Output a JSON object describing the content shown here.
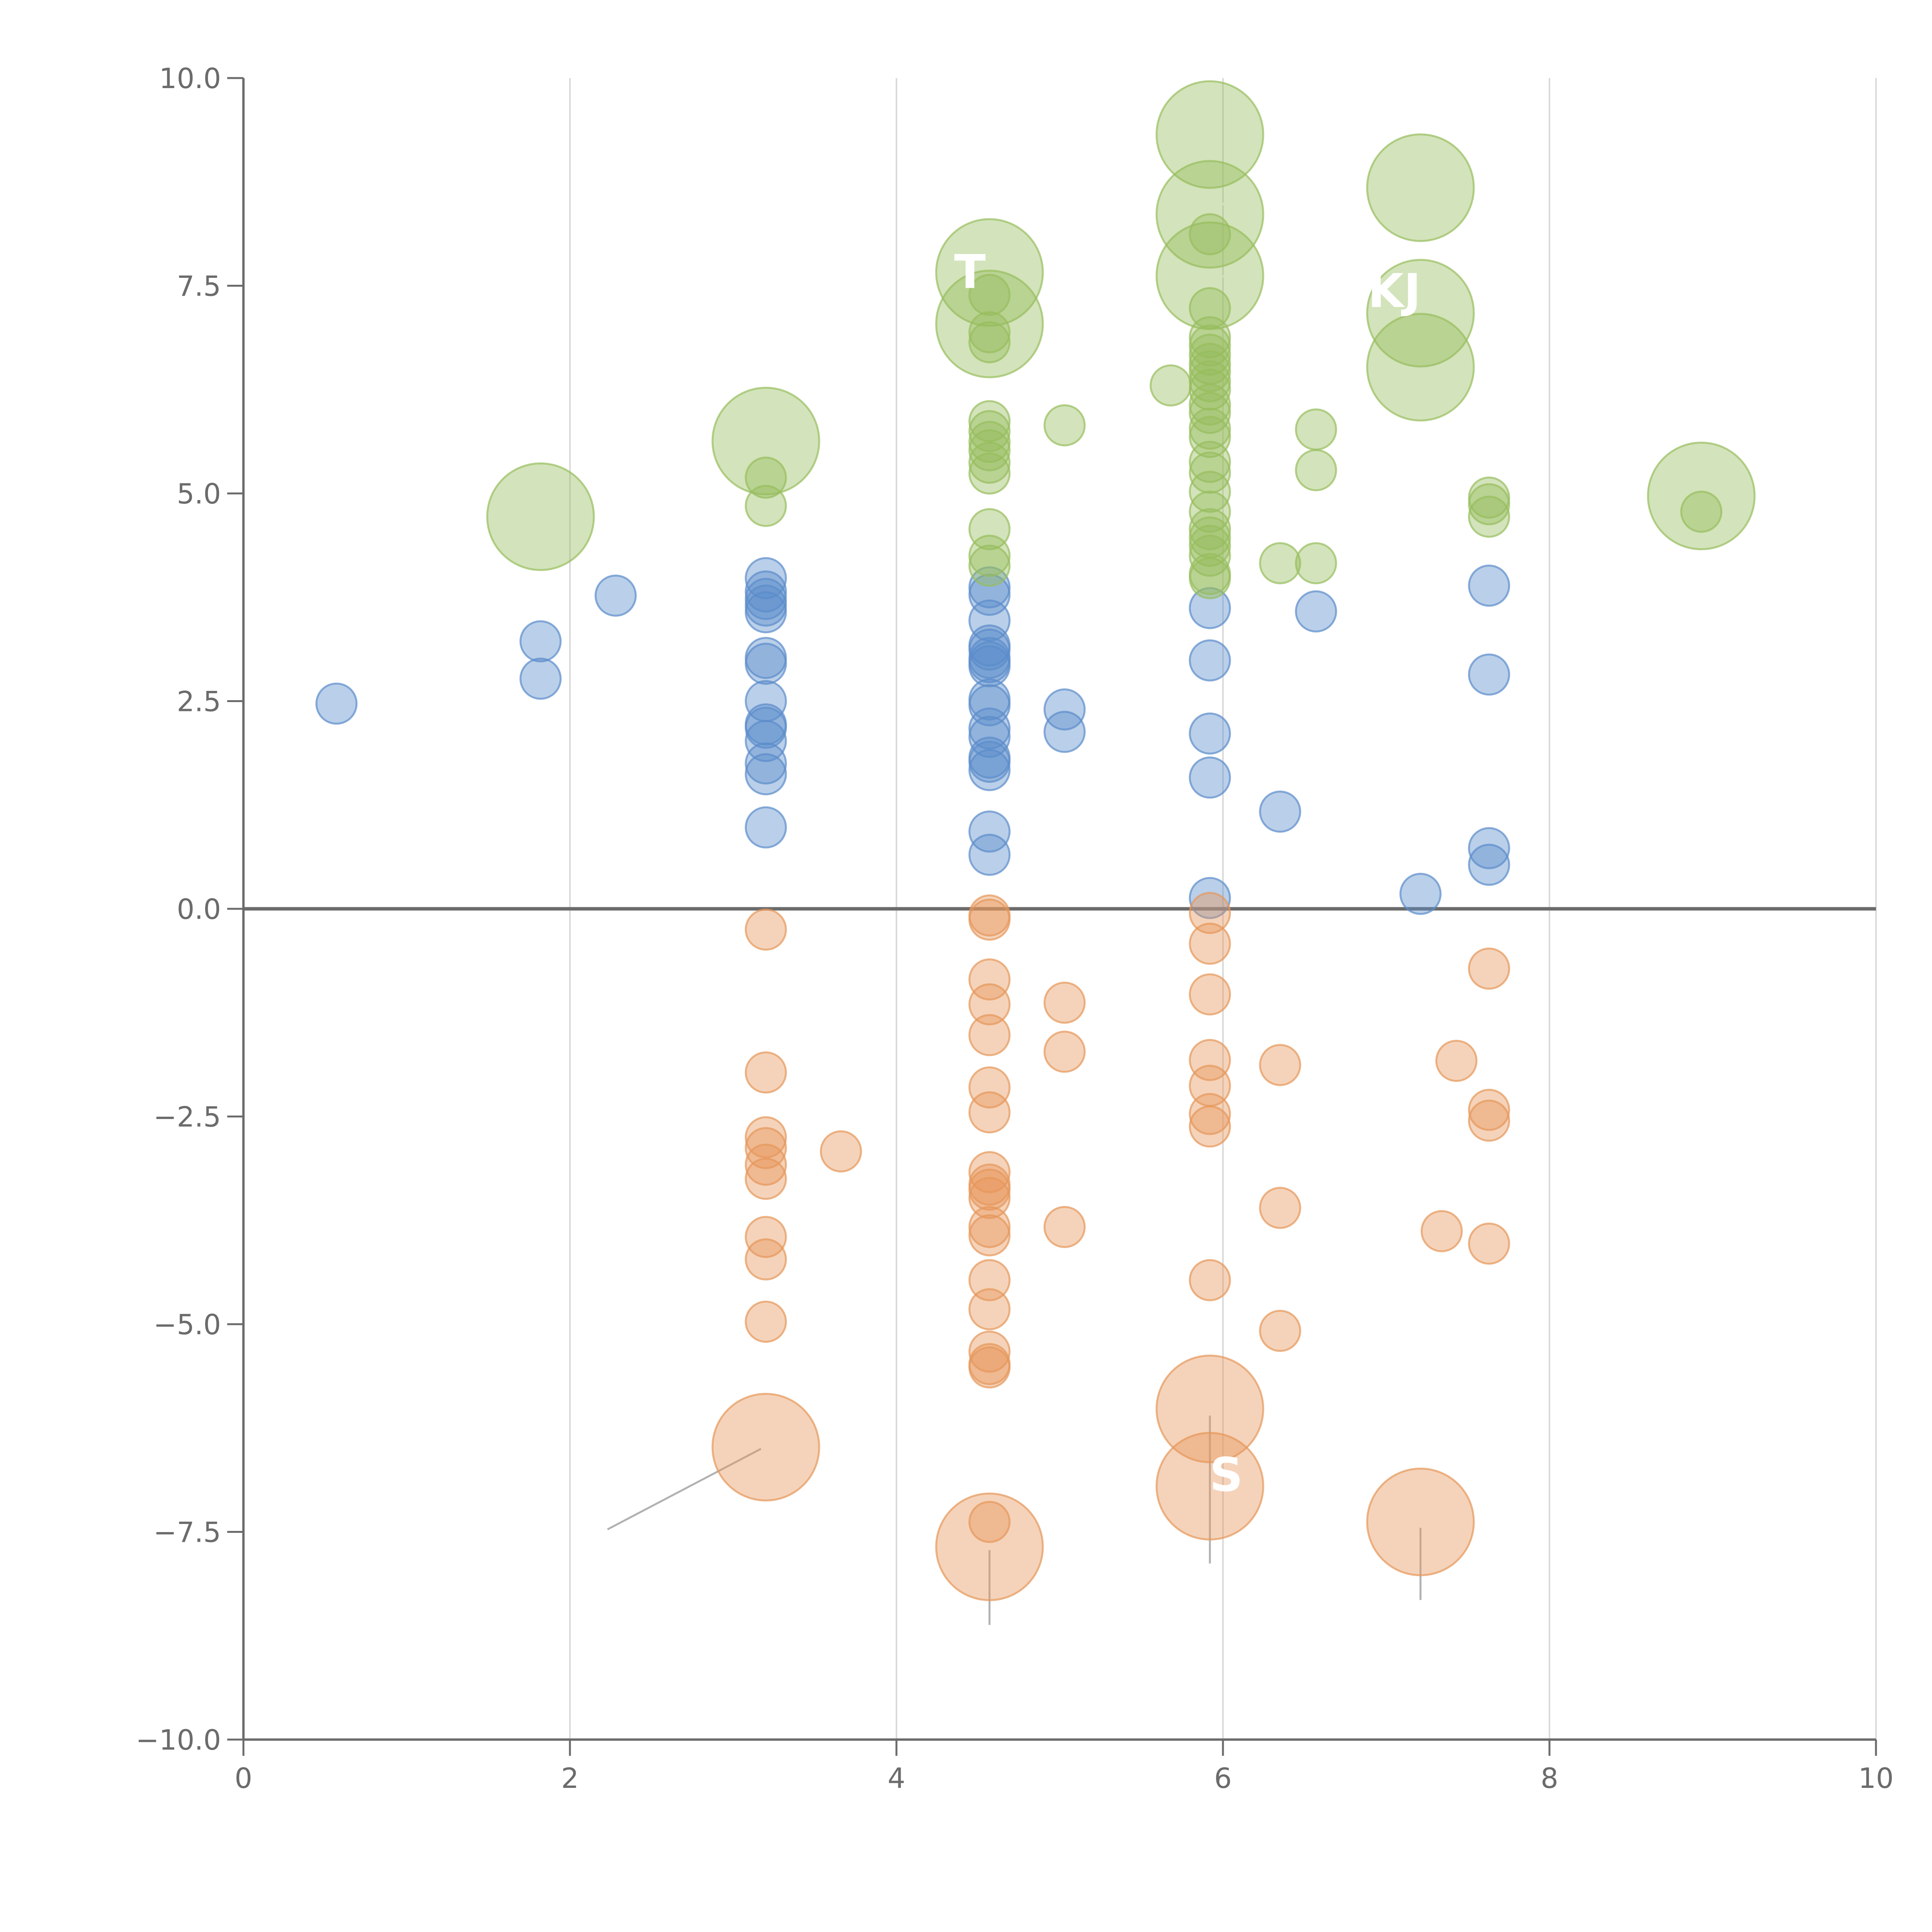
{
  "chart_data": {
    "type": "scatter",
    "title": "",
    "xlabel": "",
    "ylabel": "",
    "xlim": [
      0,
      10
    ],
    "ylim": [
      -10,
      10
    ],
    "grid": "vertical",
    "x_ticks": [
      0,
      2,
      4,
      6,
      8,
      10
    ],
    "x_tick_labels": [
      "0",
      "2",
      "4",
      "6",
      "8",
      "10"
    ],
    "y_ticks": [
      10,
      7.5,
      5,
      2.5,
      0,
      -2.5,
      -5,
      -7.5,
      -10
    ],
    "y_tick_labels": [
      "10.0",
      "7.5",
      "5.0",
      "2.5",
      "0.0",
      "−2.5",
      "−5.0",
      "−7.5",
      "−10.0"
    ],
    "zero_line": 0,
    "colors": {
      "blue": "#5b8ccb",
      "green": "#97bd5c",
      "orange": "#e6975a",
      "axis": "#6b6b6b",
      "grid": "#d9d9d9",
      "leader": "#a8a8a8",
      "label": "#ffffff"
    },
    "series": [
      {
        "name": "blue",
        "color": "#5b8ccb",
        "points": [
          [
            0.57,
            2.47,
            1
          ],
          [
            1.82,
            3.22,
            1
          ],
          [
            1.82,
            2.77,
            1
          ],
          [
            2.28,
            3.77,
            1
          ],
          [
            3.2,
            3.98,
            1
          ],
          [
            3.2,
            3.82,
            1
          ],
          [
            3.2,
            3.73,
            1
          ],
          [
            3.2,
            3.65,
            1
          ],
          [
            3.2,
            3.57,
            1
          ],
          [
            3.2,
            3.02,
            1
          ],
          [
            3.2,
            2.95,
            1
          ],
          [
            3.2,
            2.5,
            1
          ],
          [
            3.2,
            2.22,
            1
          ],
          [
            3.2,
            2.18,
            1
          ],
          [
            3.2,
            2.02,
            1
          ],
          [
            3.2,
            1.75,
            1
          ],
          [
            3.2,
            1.62,
            1
          ],
          [
            3.2,
            0.98,
            1
          ],
          [
            4.57,
            3.87,
            1
          ],
          [
            4.57,
            3.78,
            1
          ],
          [
            4.57,
            3.47,
            1
          ],
          [
            4.57,
            3.17,
            1
          ],
          [
            4.57,
            3.12,
            1
          ],
          [
            4.57,
            3.02,
            1
          ],
          [
            4.57,
            2.97,
            1
          ],
          [
            4.57,
            2.92,
            1
          ],
          [
            4.57,
            2.52,
            1
          ],
          [
            4.57,
            2.45,
            1
          ],
          [
            4.57,
            2.17,
            1
          ],
          [
            4.57,
            2.07,
            1
          ],
          [
            4.57,
            1.82,
            1
          ],
          [
            4.57,
            1.77,
            1
          ],
          [
            4.57,
            1.67,
            1
          ],
          [
            4.57,
            0.93,
            1
          ],
          [
            4.57,
            0.65,
            1
          ],
          [
            5.03,
            2.4,
            1
          ],
          [
            5.03,
            2.13,
            1
          ],
          [
            5.92,
            3.62,
            1
          ],
          [
            5.92,
            2.99,
            1
          ],
          [
            5.92,
            2.11,
            1
          ],
          [
            5.92,
            1.58,
            1
          ],
          [
            5.92,
            0.13,
            1
          ],
          [
            6.35,
            1.17,
            1
          ],
          [
            6.57,
            3.58,
            1
          ],
          [
            7.21,
            0.18,
            1
          ],
          [
            7.63,
            3.89,
            1
          ],
          [
            7.63,
            2.82,
            1
          ],
          [
            7.63,
            0.73,
            1
          ],
          [
            7.63,
            0.53,
            1
          ]
        ]
      },
      {
        "name": "green",
        "color": "#97bd5c",
        "points": [
          [
            1.82,
            4.72,
            2.6
          ],
          [
            3.2,
            5.63,
            2.6
          ],
          [
            3.2,
            5.19,
            1
          ],
          [
            3.2,
            4.85,
            1
          ],
          [
            4.57,
            7.66,
            2.6
          ],
          [
            4.57,
            7.04,
            2.6
          ],
          [
            4.57,
            7.39,
            1
          ],
          [
            4.57,
            6.94,
            1
          ],
          [
            4.57,
            6.82,
            1
          ],
          [
            4.57,
            5.87,
            1
          ],
          [
            4.57,
            5.75,
            1
          ],
          [
            4.57,
            5.62,
            1
          ],
          [
            4.57,
            5.52,
            1
          ],
          [
            4.57,
            5.37,
            1
          ],
          [
            4.57,
            5.24,
            1
          ],
          [
            4.57,
            4.57,
            1
          ],
          [
            4.57,
            4.25,
            1
          ],
          [
            4.57,
            4.13,
            1
          ],
          [
            5.03,
            5.82,
            1
          ],
          [
            5.68,
            6.3,
            1
          ],
          [
            5.92,
            9.32,
            2.6
          ],
          [
            5.92,
            8.36,
            2.6
          ],
          [
            5.92,
            7.62,
            2.6
          ],
          [
            5.92,
            8.12,
            1
          ],
          [
            5.92,
            7.23,
            1
          ],
          [
            5.92,
            6.88,
            1
          ],
          [
            5.92,
            6.78,
            1
          ],
          [
            5.92,
            6.67,
            1
          ],
          [
            5.92,
            6.56,
            1
          ],
          [
            5.92,
            6.47,
            1
          ],
          [
            5.92,
            6.35,
            1
          ],
          [
            5.92,
            6.25,
            1
          ],
          [
            5.92,
            6.07,
            1
          ],
          [
            5.92,
            5.97,
            1
          ],
          [
            5.92,
            5.78,
            1
          ],
          [
            5.92,
            5.68,
            1
          ],
          [
            5.92,
            5.38,
            1
          ],
          [
            5.92,
            5.25,
            1
          ],
          [
            5.92,
            5.02,
            1
          ],
          [
            5.92,
            4.78,
            1
          ],
          [
            5.92,
            4.57,
            1
          ],
          [
            5.92,
            4.47,
            1
          ],
          [
            5.92,
            4.37,
            1
          ],
          [
            5.92,
            4.25,
            1
          ],
          [
            5.92,
            4.03,
            1
          ],
          [
            5.92,
            3.98,
            1
          ],
          [
            6.35,
            4.16,
            1
          ],
          [
            6.57,
            5.77,
            1
          ],
          [
            6.57,
            5.28,
            1
          ],
          [
            6.57,
            4.16,
            1
          ],
          [
            7.21,
            8.68,
            2.6
          ],
          [
            7.21,
            7.17,
            2.6
          ],
          [
            7.21,
            6.52,
            2.6
          ],
          [
            7.63,
            4.95,
            1
          ],
          [
            7.63,
            4.87,
            1
          ],
          [
            7.63,
            4.72,
            1
          ],
          [
            8.93,
            4.97,
            2.6
          ],
          [
            8.93,
            4.78,
            1
          ]
        ]
      },
      {
        "name": "orange",
        "color": "#e6975a",
        "points": [
          [
            3.2,
            -0.25,
            1
          ],
          [
            3.2,
            -1.97,
            1
          ],
          [
            3.2,
            -2.75,
            1
          ],
          [
            3.2,
            -2.88,
            1
          ],
          [
            3.2,
            -3.08,
            1
          ],
          [
            3.2,
            -3.25,
            1
          ],
          [
            3.2,
            -3.95,
            1
          ],
          [
            3.2,
            -4.22,
            1
          ],
          [
            3.2,
            -4.97,
            1
          ],
          [
            3.2,
            -6.48,
            2.6
          ],
          [
            3.66,
            -2.92,
            1
          ],
          [
            4.57,
            -0.08,
            1
          ],
          [
            4.57,
            -0.13,
            1
          ],
          [
            4.57,
            -0.85,
            1
          ],
          [
            4.57,
            -1.15,
            1
          ],
          [
            4.57,
            -1.52,
            1
          ],
          [
            4.57,
            -2.15,
            1
          ],
          [
            4.57,
            -2.45,
            1
          ],
          [
            4.57,
            -3.17,
            1
          ],
          [
            4.57,
            -3.32,
            1
          ],
          [
            4.57,
            -3.38,
            1
          ],
          [
            4.57,
            -3.48,
            1
          ],
          [
            4.57,
            -3.83,
            1
          ],
          [
            4.57,
            -3.93,
            1
          ],
          [
            4.57,
            -4.47,
            1
          ],
          [
            4.57,
            -4.82,
            1
          ],
          [
            4.57,
            -5.33,
            1
          ],
          [
            4.57,
            -5.48,
            1
          ],
          [
            4.57,
            -5.52,
            1
          ],
          [
            4.57,
            -7.38,
            1
          ],
          [
            4.57,
            -7.68,
            2.6
          ],
          [
            5.03,
            -1.13,
            1
          ],
          [
            5.03,
            -1.72,
            1
          ],
          [
            5.03,
            -3.83,
            1
          ],
          [
            5.92,
            -0.05,
            1
          ],
          [
            5.92,
            -0.42,
            1
          ],
          [
            5.92,
            -1.03,
            1
          ],
          [
            5.92,
            -1.82,
            1
          ],
          [
            5.92,
            -2.13,
            1
          ],
          [
            5.92,
            -2.47,
            1
          ],
          [
            5.92,
            -2.62,
            1
          ],
          [
            5.92,
            -4.47,
            1
          ],
          [
            5.92,
            -6.02,
            2.6
          ],
          [
            5.92,
            -6.95,
            2.6
          ],
          [
            6.35,
            -1.88,
            1
          ],
          [
            6.35,
            -3.6,
            1
          ],
          [
            6.35,
            -5.08,
            1
          ],
          [
            7.21,
            -7.38,
            2.6
          ],
          [
            7.34,
            -3.88,
            1
          ],
          [
            7.43,
            -1.83,
            1
          ],
          [
            7.63,
            -0.72,
            1
          ],
          [
            7.63,
            -2.42,
            1
          ],
          [
            7.63,
            -2.55,
            1
          ],
          [
            7.63,
            -4.03,
            1
          ]
        ]
      }
    ],
    "leader_lines": [
      {
        "series": "green",
        "from": [
          1.86,
          4.76
        ],
        "to": [
          1.98,
          5.0
        ]
      },
      {
        "series": "green",
        "from": [
          3.24,
          5.68
        ],
        "to": [
          3.32,
          5.85
        ]
      },
      {
        "series": "green",
        "from": [
          4.61,
          7.0
        ],
        "to": [
          4.67,
          6.75
        ]
      },
      {
        "series": "green",
        "from": [
          5.88,
          9.32
        ],
        "to": [
          5.72,
          9.36
        ]
      },
      {
        "series": "green",
        "from": [
          5.95,
          8.4
        ],
        "to": [
          6.1,
          8.65
        ]
      },
      {
        "series": "green",
        "from": [
          5.96,
          7.62
        ],
        "to": [
          6.2,
          7.58
        ]
      },
      {
        "series": "green",
        "from": [
          7.25,
          8.72
        ],
        "to": [
          7.4,
          8.85
        ]
      },
      {
        "series": "green",
        "from": [
          7.25,
          7.2
        ],
        "to": [
          7.45,
          7.3
        ]
      },
      {
        "series": "green",
        "from": [
          7.23,
          6.6
        ],
        "to": [
          7.21,
          6.3
        ]
      },
      {
        "series": "green",
        "from": [
          8.9,
          4.85
        ],
        "to": [
          8.78,
          4.62
        ]
      },
      {
        "series": "orange",
        "from": [
          3.17,
          -6.5
        ],
        "to": [
          2.23,
          -7.47
        ]
      },
      {
        "series": "orange",
        "from": [
          4.57,
          -7.72
        ],
        "to": [
          4.57,
          -8.62
        ]
      },
      {
        "series": "orange",
        "from": [
          5.92,
          -6.1
        ],
        "to": [
          5.92,
          -7.88
        ]
      },
      {
        "series": "orange",
        "from": [
          7.21,
          -7.45
        ],
        "to": [
          7.21,
          -8.32
        ]
      }
    ],
    "annotations": [
      {
        "text": "T",
        "x": 4.45,
        "y": 7.66
      },
      {
        "text": "KJ",
        "x": 7.05,
        "y": 7.43
      },
      {
        "text": "S",
        "x": 6.02,
        "y": -6.82
      }
    ]
  }
}
